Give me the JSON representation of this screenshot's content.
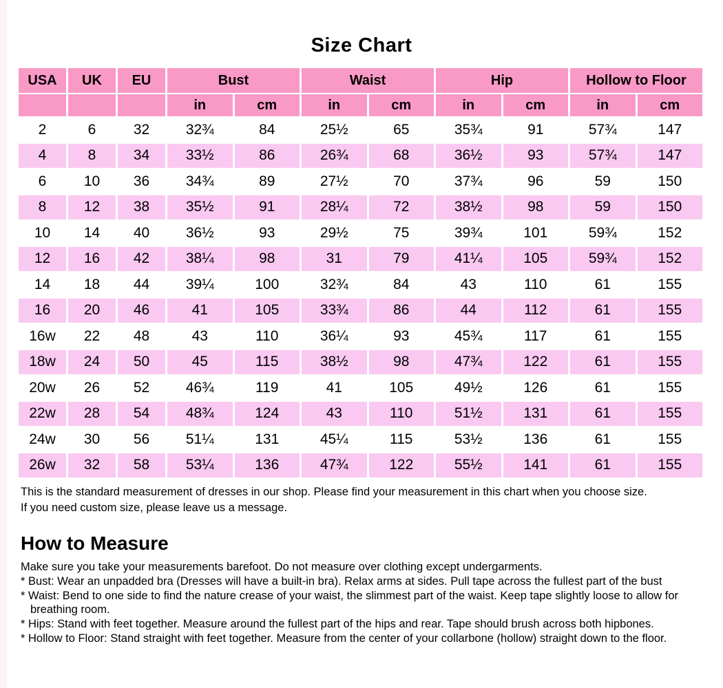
{
  "title": "Size Chart",
  "colors": {
    "header_pink": "#f999c6",
    "row_pink": "#f9c9f1",
    "page_bg": "#ffffff"
  },
  "table": {
    "columns": [
      "USA",
      "UK",
      "EU"
    ],
    "groups": [
      "Bust",
      "Waist",
      "Hip",
      "Hollow to Floor"
    ],
    "units": [
      "in",
      "cm",
      "in",
      "cm",
      "in",
      "cm",
      "in",
      "cm"
    ],
    "rows": [
      [
        "2",
        "6",
        "32",
        "32¾",
        "84",
        "25½",
        "65",
        "35¾",
        "91",
        "57¾",
        "147"
      ],
      [
        "4",
        "8",
        "34",
        "33½",
        "86",
        "26¾",
        "68",
        "36½",
        "93",
        "57¾",
        "147"
      ],
      [
        "6",
        "10",
        "36",
        "34¾",
        "89",
        "27½",
        "70",
        "37¾",
        "96",
        "59",
        "150"
      ],
      [
        "8",
        "12",
        "38",
        "35½",
        "91",
        "28¼",
        "72",
        "38½",
        "98",
        "59",
        "150"
      ],
      [
        "10",
        "14",
        "40",
        "36½",
        "93",
        "29½",
        "75",
        "39¾",
        "101",
        "59¾",
        "152"
      ],
      [
        "12",
        "16",
        "42",
        "38¼",
        "98",
        "31",
        "79",
        "41¼",
        "105",
        "59¾",
        "152"
      ],
      [
        "14",
        "18",
        "44",
        "39¼",
        "100",
        "32¾",
        "84",
        "43",
        "110",
        "61",
        "155"
      ],
      [
        "16",
        "20",
        "46",
        "41",
        "105",
        "33¾",
        "86",
        "44",
        "112",
        "61",
        "155"
      ],
      [
        "16w",
        "22",
        "48",
        "43",
        "110",
        "36¼",
        "93",
        "45¾",
        "117",
        "61",
        "155"
      ],
      [
        "18w",
        "24",
        "50",
        "45",
        "115",
        "38½",
        "98",
        "47¾",
        "122",
        "61",
        "155"
      ],
      [
        "20w",
        "26",
        "52",
        "46¾",
        "119",
        "41",
        "105",
        "49½",
        "126",
        "61",
        "155"
      ],
      [
        "22w",
        "28",
        "54",
        "48¾",
        "124",
        "43",
        "110",
        "51½",
        "131",
        "61",
        "155"
      ],
      [
        "24w",
        "30",
        "56",
        "51¼",
        "131",
        "45¼",
        "115",
        "53½",
        "136",
        "61",
        "155"
      ],
      [
        "26w",
        "32",
        "58",
        "53¼",
        "136",
        "47¾",
        "122",
        "55½",
        "141",
        "61",
        "155"
      ]
    ]
  },
  "notes": {
    "line1": "This is the standard measurement of dresses in our shop. Please find your measurement in this chart when you choose size.",
    "line2": "If you need custom size, please leave us a message."
  },
  "how_to_measure": {
    "heading": "How to Measure",
    "intro": "Make sure you take your measurements barefoot. Do not measure over clothing except undergarments.",
    "items": [
      "* Bust: Wear an unpadded bra (Dresses will have a built-in bra). Relax arms at sides. Pull tape across the fullest part of the bust",
      "* Waist: Bend to one side to find the nature crease of your waist, the slimmest part of the waist. Keep tape slightly loose to allow for breathing room.",
      "* Hips: Stand with feet together. Measure around the fullest part of the hips and rear. Tape should brush across both hipbones.",
      "* Hollow to Floor: Stand straight with feet together. Measure from the center of your collarbone (hollow) straight down to the floor."
    ]
  }
}
